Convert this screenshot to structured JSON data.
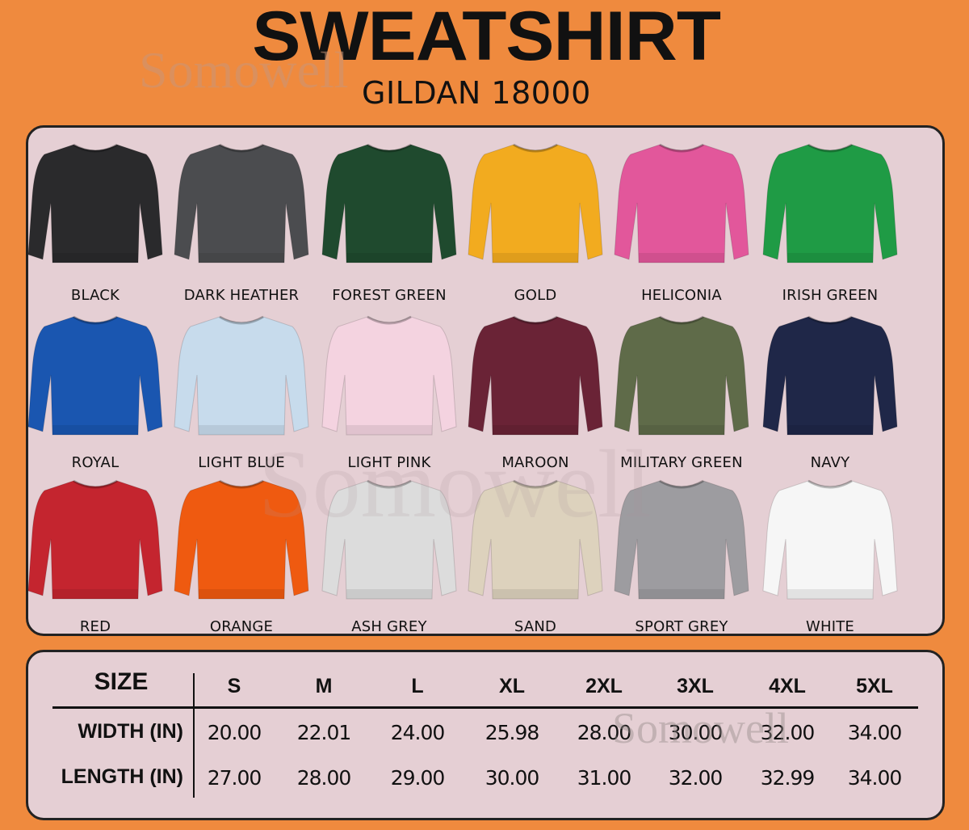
{
  "header": {
    "title": "SWEATSHIRT",
    "subtitle": "GILDAN 18000"
  },
  "watermark": "Somowell",
  "colors": [
    {
      "name": "BLACK",
      "hex": "#2a2a2c"
    },
    {
      "name": "DARK HEATHER",
      "hex": "#4b4c4f"
    },
    {
      "name": "FOREST GREEN",
      "hex": "#1f4a2e"
    },
    {
      "name": "GOLD",
      "hex": "#f2ab1f"
    },
    {
      "name": "HELICONIA",
      "hex": "#e2579b"
    },
    {
      "name": "IRISH GREEN",
      "hex": "#1f9b45"
    },
    {
      "name": "ROYAL",
      "hex": "#1a56b0"
    },
    {
      "name": "LIGHT BLUE",
      "hex": "#c7dbec"
    },
    {
      "name": "LIGHT PINK",
      "hex": "#f4d3e0"
    },
    {
      "name": "MAROON",
      "hex": "#6a2336"
    },
    {
      "name": "MILITARY GREEN",
      "hex": "#5f6b49"
    },
    {
      "name": "NAVY",
      "hex": "#1f2748"
    },
    {
      "name": "RED",
      "hex": "#c4252f"
    },
    {
      "name": "ORANGE",
      "hex": "#ef5a10"
    },
    {
      "name": "ASH GREY",
      "hex": "#dcdcdc"
    },
    {
      "name": "SAND",
      "hex": "#ddd2bd"
    },
    {
      "name": "SPORT GREY",
      "hex": "#9d9ca0"
    },
    {
      "name": "WHITE",
      "hex": "#f6f6f6"
    }
  ],
  "size_table": {
    "header_label": "SIZE",
    "sizes": [
      "S",
      "M",
      "L",
      "XL",
      "2XL",
      "3XL",
      "4XL",
      "5XL"
    ],
    "rows": [
      {
        "label": "WIDTH (IN)",
        "values": [
          "20.00",
          "22.01",
          "24.00",
          "25.98",
          "28.00",
          "30.00",
          "32.00",
          "34.00"
        ]
      },
      {
        "label": "LENGTH (IN)",
        "values": [
          "27.00",
          "28.00",
          "29.00",
          "30.00",
          "31.00",
          "32.00",
          "32.99",
          "34.00"
        ]
      }
    ]
  }
}
